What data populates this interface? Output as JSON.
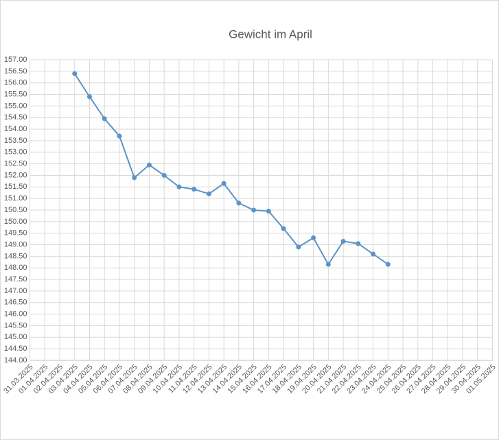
{
  "chart_data": {
    "type": "line",
    "title": "Gewicht im April",
    "categories": [
      "31.03.2025",
      "01.04.2025",
      "02.04.2025",
      "03.04.2025",
      "04.04.2025",
      "05.04.2025",
      "06.04.2025",
      "07.04.2025",
      "08.04.2025",
      "09.04.2025",
      "10.04.2025",
      "11.04.2025",
      "12.04.2025",
      "13.04.2025",
      "14.04.2025",
      "15.04.2025",
      "16.04.2025",
      "17.04.2025",
      "18.04.2025",
      "19.04.2025",
      "20.04.2025",
      "21.04.2025",
      "22.04.2025",
      "23.04.2025",
      "24.04.2025",
      "25.04.2025",
      "26.04.2025",
      "27.04.2025",
      "28.04.2025",
      "29.04.2025",
      "30.04.2025",
      "01.05.2025"
    ],
    "values": [
      null,
      null,
      null,
      156.4,
      155.4,
      154.45,
      153.7,
      151.9,
      152.45,
      152.0,
      151.5,
      151.4,
      151.2,
      151.65,
      150.8,
      150.5,
      150.45,
      149.7,
      148.9,
      149.3,
      148.15,
      149.15,
      149.05,
      148.6,
      148.15,
      null,
      null,
      null,
      null,
      null,
      null,
      null
    ],
    "color": "#5b93c9",
    "ylim": [
      144,
      157
    ],
    "yticks": [
      {
        "value": 144,
        "label": "144.00"
      },
      {
        "value": 144.5,
        "label": "144.50"
      },
      {
        "value": 145,
        "label": "145.00"
      },
      {
        "value": 145.5,
        "label": "145.50"
      },
      {
        "value": 146,
        "label": "146.00"
      },
      {
        "value": 146.5,
        "label": "146.50"
      },
      {
        "value": 147,
        "label": "147.00"
      },
      {
        "value": 147.5,
        "label": "147.50"
      },
      {
        "value": 148,
        "label": "148.00"
      },
      {
        "value": 148.5,
        "label": "148.50"
      },
      {
        "value": 149,
        "label": "149.00"
      },
      {
        "value": 149.5,
        "label": "149.50"
      },
      {
        "value": 150,
        "label": "150.00"
      },
      {
        "value": 150.5,
        "label": "150.50"
      },
      {
        "value": 151,
        "label": "151.00"
      },
      {
        "value": 151.5,
        "label": "151.50"
      },
      {
        "value": 152,
        "label": "152.00"
      },
      {
        "value": 152.5,
        "label": "152.50"
      },
      {
        "value": 153,
        "label": "153.00"
      },
      {
        "value": 153.5,
        "label": "153.50"
      },
      {
        "value": 154,
        "label": "154.00"
      },
      {
        "value": 154.5,
        "label": "154.50"
      },
      {
        "value": 155,
        "label": "155.00"
      },
      {
        "value": 155.5,
        "label": "155.50"
      },
      {
        "value": 156,
        "label": "156.00"
      },
      {
        "value": 156.5,
        "label": "156.50"
      },
      {
        "value": 157,
        "label": "157.00"
      }
    ],
    "grid": true
  }
}
